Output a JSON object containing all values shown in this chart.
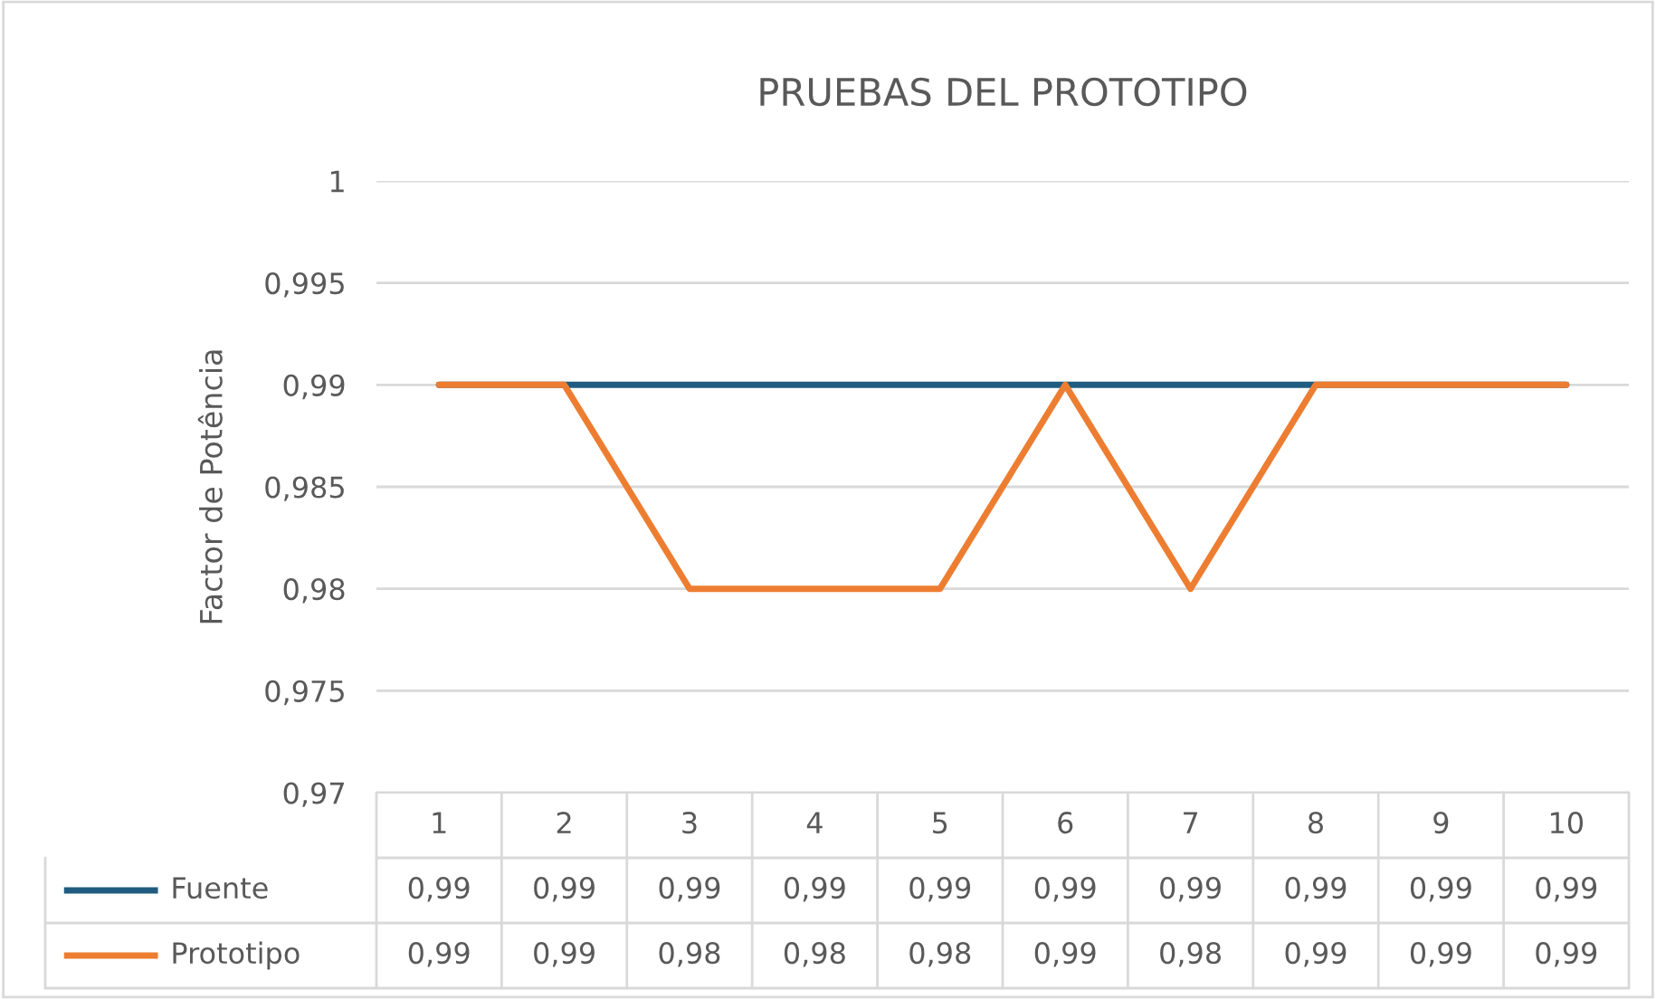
{
  "chart_data": {
    "type": "line",
    "title": "PRUEBAS DEL PROTOTIPO",
    "ylabel": "Factor de Potência",
    "categories": [
      "1",
      "2",
      "3",
      "4",
      "5",
      "6",
      "7",
      "8",
      "9",
      "10"
    ],
    "series": [
      {
        "name": "Fuente",
        "color": "#1f5c7f",
        "values": [
          0.99,
          0.99,
          0.99,
          0.99,
          0.99,
          0.99,
          0.99,
          0.99,
          0.99,
          0.99
        ],
        "value_labels": [
          "0,99",
          "0,99",
          "0,99",
          "0,99",
          "0,99",
          "0,99",
          "0,99",
          "0,99",
          "0,99",
          "0,99"
        ]
      },
      {
        "name": "Prototipo",
        "color": "#ed7d31",
        "values": [
          0.99,
          0.99,
          0.98,
          0.98,
          0.98,
          0.99,
          0.98,
          0.99,
          0.99,
          0.99
        ],
        "value_labels": [
          "0,99",
          "0,99",
          "0,98",
          "0,98",
          "0,98",
          "0,99",
          "0,98",
          "0,99",
          "0,99",
          "0,99"
        ]
      }
    ],
    "ylim": [
      0.97,
      1
    ],
    "yticks": [
      {
        "value": 0.97,
        "label": "0,97"
      },
      {
        "value": 0.975,
        "label": "0,975"
      },
      {
        "value": 0.98,
        "label": "0,98"
      },
      {
        "value": 0.985,
        "label": "0,985"
      },
      {
        "value": 0.99,
        "label": "0,99"
      },
      {
        "value": 0.995,
        "label": "0,995"
      },
      {
        "value": 1,
        "label": "1"
      }
    ],
    "grid": "y",
    "legend": "bottom",
    "marker": "none",
    "line_style": "solid"
  }
}
